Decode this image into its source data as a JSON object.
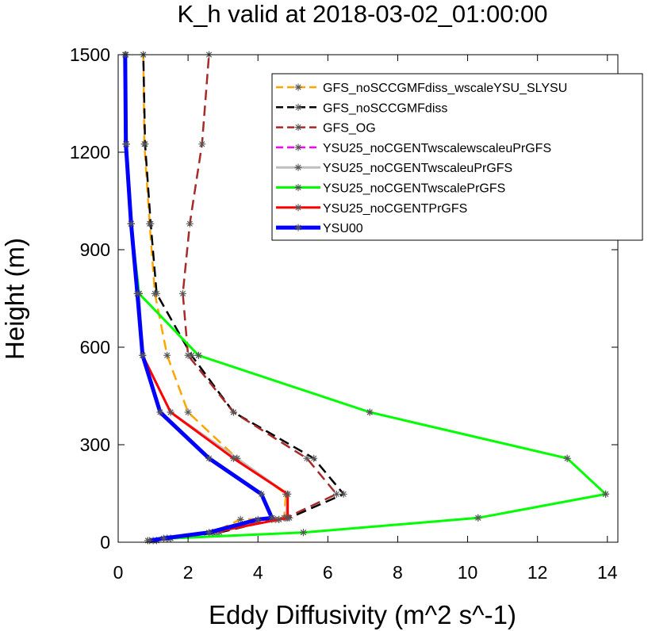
{
  "chart_data": {
    "type": "line",
    "title": "K_h valid at 2018-03-02_01:00:00",
    "xlabel": "Eddy Diffusivity (m^2 s^-1)",
    "ylabel": "Height (m)",
    "xlim": [
      0,
      14.3
    ],
    "ylim": [
      0,
      1500
    ],
    "xticks": [
      0,
      2,
      4,
      6,
      8,
      10,
      12,
      14
    ],
    "yticks": [
      0,
      300,
      600,
      900,
      1200,
      1500
    ],
    "xtick_labels": [
      "0",
      "2",
      "4",
      "6",
      "8",
      "10",
      "12",
      "14"
    ],
    "ytick_labels": [
      "0",
      "300",
      "600",
      "900",
      "1200",
      "1500"
    ],
    "grid": false,
    "legend_position": "top-right",
    "series": [
      {
        "name": "GFS_noSCCGMFdiss_wscaleYSU_SLYSU",
        "color": "#ffa500",
        "dash": "dashed",
        "width": 2.5,
        "marker": "asterisk",
        "points": [
          [
            1.1,
            5
          ],
          [
            1.4,
            12
          ],
          [
            2.7,
            30
          ],
          [
            3.5,
            70
          ],
          [
            4.75,
            75
          ],
          [
            4.8,
            148
          ],
          [
            3.4,
            258
          ],
          [
            2.0,
            400
          ],
          [
            1.4,
            575
          ],
          [
            1.05,
            765
          ],
          [
            0.9,
            980
          ],
          [
            0.75,
            1225
          ],
          [
            0.72,
            1500
          ]
        ]
      },
      {
        "name": "GFS_noSCCGMFdiss",
        "color": "#000000",
        "dash": "dashed",
        "width": 2.5,
        "marker": "asterisk",
        "points": [
          [
            1.1,
            5
          ],
          [
            1.5,
            12
          ],
          [
            2.9,
            30
          ],
          [
            4.5,
            70
          ],
          [
            4.9,
            75
          ],
          [
            6.45,
            148
          ],
          [
            5.6,
            258
          ],
          [
            3.3,
            400
          ],
          [
            2.1,
            575
          ],
          [
            1.1,
            765
          ],
          [
            0.93,
            980
          ],
          [
            0.77,
            1225
          ],
          [
            0.72,
            1500
          ]
        ]
      },
      {
        "name": "GFS_OG",
        "color": "#a52a2a",
        "dash": "dashed",
        "width": 2.5,
        "marker": "asterisk",
        "points": [
          [
            1.1,
            5
          ],
          [
            1.5,
            12
          ],
          [
            2.8,
            30
          ],
          [
            4.4,
            70
          ],
          [
            4.8,
            75
          ],
          [
            6.25,
            148
          ],
          [
            5.4,
            258
          ],
          [
            3.3,
            400
          ],
          [
            2.0,
            575
          ],
          [
            1.85,
            765
          ],
          [
            2.05,
            980
          ],
          [
            2.4,
            1225
          ],
          [
            2.6,
            1500
          ]
        ]
      },
      {
        "name": "YSU25_noCGENTwscalewscaleuPrGFS",
        "color": "#ff00ff",
        "dash": "dashed",
        "width": 2.5,
        "marker": "asterisk",
        "points": [
          [
            0.85,
            5
          ],
          [
            1.5,
            12
          ],
          [
            5.3,
            30
          ],
          [
            10.3,
            75
          ],
          [
            13.95,
            148
          ],
          [
            12.85,
            258
          ],
          [
            7.2,
            400
          ],
          [
            2.3,
            575
          ],
          [
            0.6,
            765
          ],
          [
            0.37,
            980
          ],
          [
            0.23,
            1225
          ],
          [
            0.22,
            1500
          ]
        ]
      },
      {
        "name": "YSU25_noCGENTwscaleuPrGFS",
        "color": "#bebebe",
        "dash": "solid",
        "width": 3,
        "marker": "asterisk",
        "points": [
          [
            1.0,
            5
          ],
          [
            1.4,
            12
          ],
          [
            2.7,
            30
          ],
          [
            4.6,
            70
          ],
          [
            4.8,
            75
          ],
          [
            4.85,
            148
          ],
          [
            3.4,
            258
          ],
          [
            1.5,
            400
          ],
          [
            0.7,
            575
          ],
          [
            0.6,
            765
          ],
          [
            0.37,
            980
          ],
          [
            0.23,
            1225
          ],
          [
            0.2,
            1500
          ]
        ]
      },
      {
        "name": "YSU25_noCGENTwscalePrGFS",
        "color": "#00ff00",
        "dash": "solid",
        "width": 3,
        "marker": "asterisk",
        "points": [
          [
            0.85,
            5
          ],
          [
            1.5,
            12
          ],
          [
            5.3,
            30
          ],
          [
            10.3,
            75
          ],
          [
            13.95,
            148
          ],
          [
            12.85,
            258
          ],
          [
            7.2,
            400
          ],
          [
            2.3,
            575
          ],
          [
            0.6,
            765
          ],
          [
            0.37,
            980
          ],
          [
            0.23,
            1225
          ],
          [
            0.22,
            1500
          ]
        ]
      },
      {
        "name": "YSU25_noCGENTPrGFS",
        "color": "#ff0000",
        "dash": "solid",
        "width": 3,
        "marker": "asterisk",
        "points": [
          [
            1.0,
            5
          ],
          [
            1.4,
            12
          ],
          [
            2.7,
            30
          ],
          [
            4.6,
            70
          ],
          [
            4.85,
            75
          ],
          [
            4.85,
            148
          ],
          [
            3.3,
            258
          ],
          [
            1.5,
            400
          ],
          [
            0.7,
            575
          ],
          [
            0.55,
            765
          ],
          [
            0.37,
            980
          ],
          [
            0.23,
            1225
          ],
          [
            0.2,
            1500
          ]
        ]
      },
      {
        "name": "YSU00",
        "color": "#0000ff",
        "dash": "solid",
        "width": 5,
        "marker": "asterisk",
        "points": [
          [
            0.9,
            5
          ],
          [
            1.3,
            12
          ],
          [
            2.6,
            30
          ],
          [
            4.0,
            70
          ],
          [
            4.4,
            75
          ],
          [
            4.1,
            148
          ],
          [
            2.6,
            258
          ],
          [
            1.2,
            400
          ],
          [
            0.7,
            575
          ],
          [
            0.55,
            765
          ],
          [
            0.37,
            980
          ],
          [
            0.22,
            1225
          ],
          [
            0.2,
            1500
          ]
        ]
      }
    ]
  }
}
